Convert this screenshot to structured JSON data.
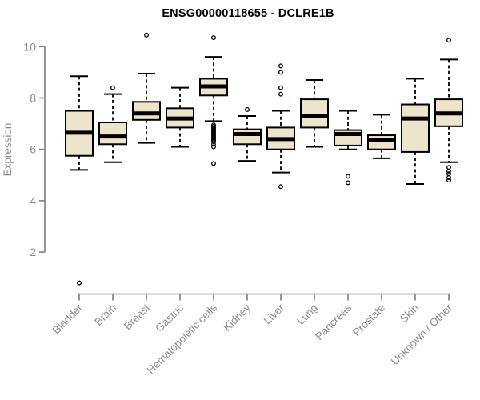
{
  "chart_data": {
    "type": "boxplot",
    "title": "ENSG00000118655 - DCLRE1B",
    "ylabel": "Expression",
    "xlabel": "",
    "y_axis": {
      "ticks": [
        2,
        4,
        6,
        8,
        10
      ],
      "range_shown": [
        2,
        10
      ]
    },
    "legend": "none",
    "grid": false,
    "categories": [
      "Bladder",
      "Brain",
      "Breast",
      "Gastric",
      "Hematopoietic cells",
      "Kidney",
      "Liver",
      "Lung",
      "Pancreas",
      "Prostate",
      "Skin",
      "Unknown / Other"
    ],
    "boxes": [
      {
        "category": "Bladder",
        "whisker_low": 5.2,
        "q1": 5.75,
        "median": 6.65,
        "q3": 7.5,
        "whisker_high": 8.85,
        "outliers": [
          0.8
        ]
      },
      {
        "category": "Brain",
        "whisker_low": 5.5,
        "q1": 6.2,
        "median": 6.5,
        "q3": 7.05,
        "whisker_high": 8.15,
        "outliers": [
          8.4
        ]
      },
      {
        "category": "Breast",
        "whisker_low": 6.25,
        "q1": 7.15,
        "median": 7.4,
        "q3": 7.85,
        "whisker_high": 8.95,
        "outliers": [
          10.45
        ]
      },
      {
        "category": "Gastric",
        "whisker_low": 6.1,
        "q1": 6.85,
        "median": 7.2,
        "q3": 7.6,
        "whisker_high": 8.4,
        "outliers": []
      },
      {
        "category": "Hematopoietic cells",
        "whisker_low": 7.1,
        "q1": 8.1,
        "median": 8.45,
        "q3": 8.75,
        "whisker_high": 9.6,
        "outliers": [
          10.35,
          6.95,
          6.9,
          6.85,
          6.8,
          6.75,
          6.7,
          6.65,
          6.6,
          6.55,
          6.5,
          6.45,
          6.4,
          6.35,
          6.3,
          6.2,
          6.1,
          5.45
        ]
      },
      {
        "category": "Kidney",
        "whisker_low": 5.55,
        "q1": 6.2,
        "median": 6.6,
        "q3": 6.78,
        "whisker_high": 7.3,
        "outliers": [
          7.55
        ]
      },
      {
        "category": "Liver",
        "whisker_low": 5.1,
        "q1": 6.0,
        "median": 6.4,
        "q3": 6.85,
        "whisker_high": 7.5,
        "outliers": [
          9.25,
          9.0,
          8.4,
          8.15,
          4.55
        ]
      },
      {
        "category": "Lung",
        "whisker_low": 6.1,
        "q1": 6.85,
        "median": 7.3,
        "q3": 7.95,
        "whisker_high": 8.7,
        "outliers": []
      },
      {
        "category": "Pancreas",
        "whisker_low": 6.0,
        "q1": 6.15,
        "median": 6.6,
        "q3": 6.75,
        "whisker_high": 7.5,
        "outliers": [
          4.95,
          4.7
        ]
      },
      {
        "category": "Prostate",
        "whisker_low": 5.65,
        "q1": 6.0,
        "median": 6.35,
        "q3": 6.55,
        "whisker_high": 7.35,
        "outliers": []
      },
      {
        "category": "Skin",
        "whisker_low": 4.65,
        "q1": 5.9,
        "median": 7.2,
        "q3": 7.75,
        "whisker_high": 8.75,
        "outliers": []
      },
      {
        "category": "Unknown / Other",
        "whisker_low": 5.5,
        "q1": 6.9,
        "median": 7.4,
        "q3": 7.95,
        "whisker_high": 9.5,
        "outliers": [
          10.25,
          5.3,
          5.15,
          5.05,
          4.9,
          4.8
        ]
      }
    ],
    "colors": {
      "box_fill": "#ece5cb",
      "box_border": "#000000",
      "median": "#000000",
      "whisker": "#000000",
      "outlier": "#000000",
      "axis": "#7e7e7e",
      "tick_label": "#8b8b8b",
      "title": "#000000"
    }
  }
}
